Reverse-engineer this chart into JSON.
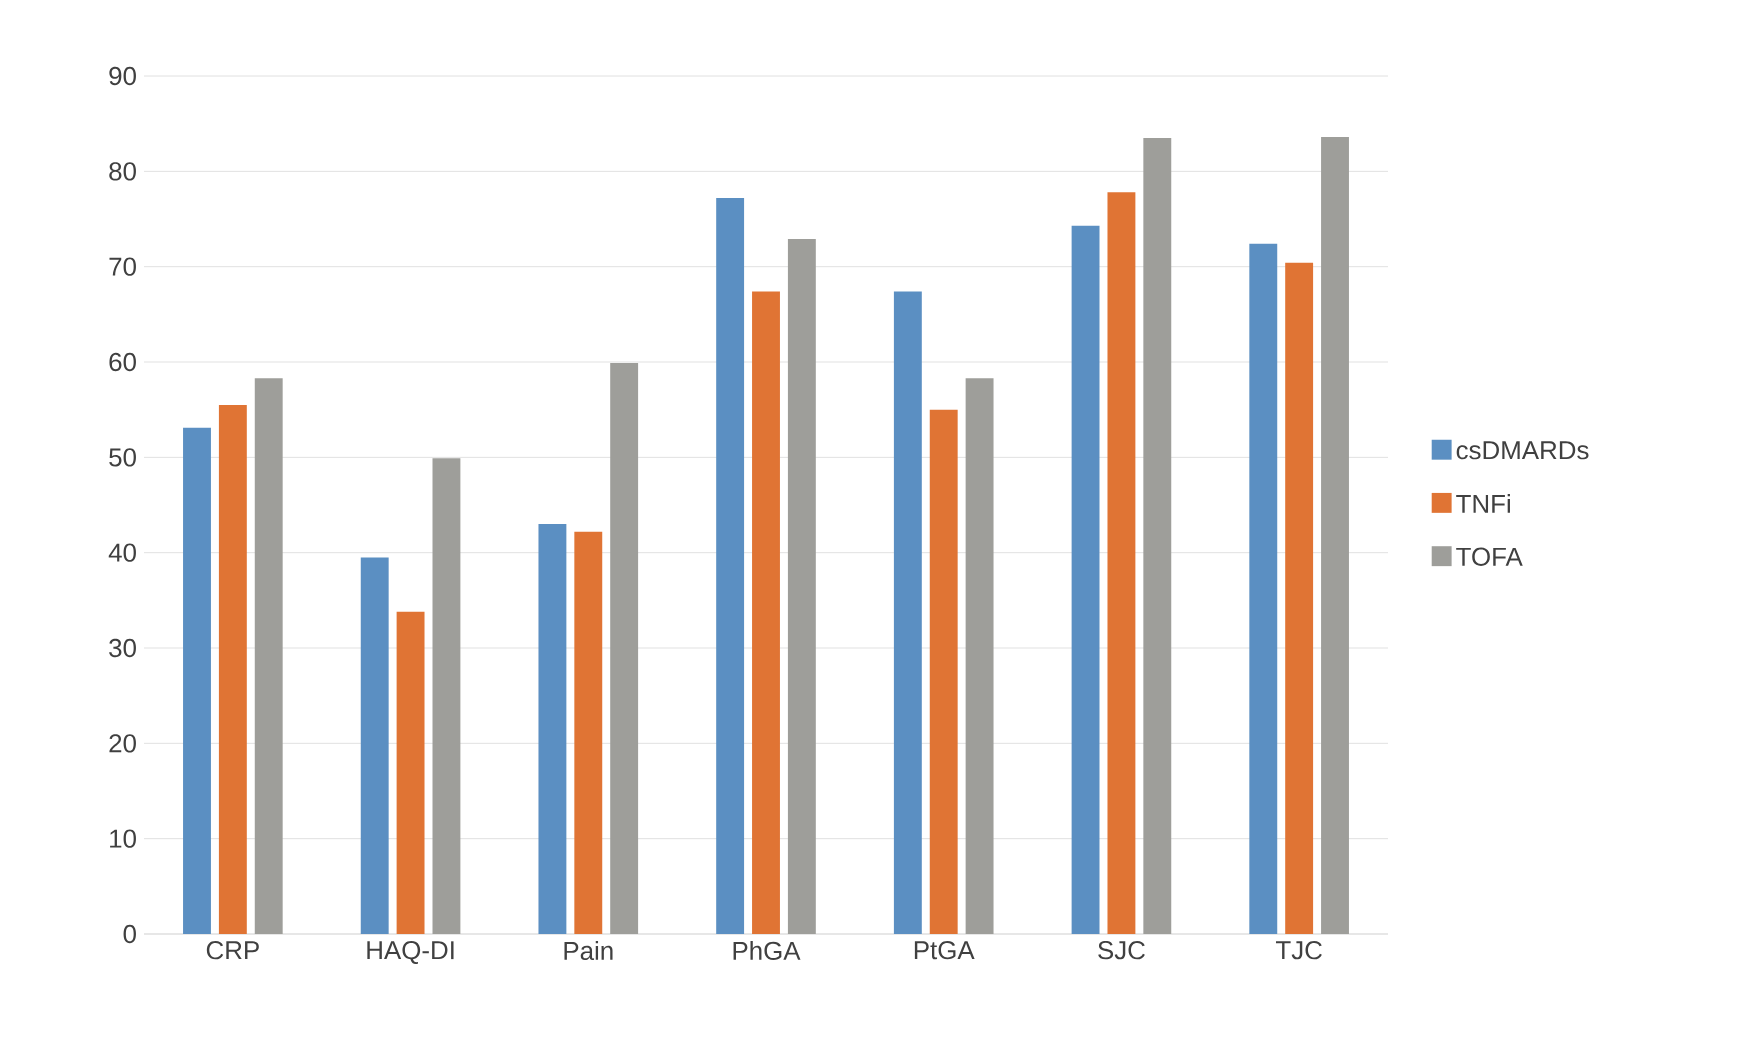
{
  "chart_data": {
    "type": "bar",
    "categories": [
      "CRP",
      "HAQ-DI",
      "Pain",
      "PhGA",
      "PtGA",
      "SJC",
      "TJC"
    ],
    "series": [
      {
        "name": "csDMARDs",
        "color": "#5b8fc2",
        "values": [
          53.1,
          39.5,
          43.0,
          77.2,
          67.4,
          74.3,
          72.4
        ]
      },
      {
        "name": "TNFi",
        "color": "#e07434",
        "values": [
          55.5,
          33.8,
          42.2,
          67.4,
          55.0,
          77.8,
          70.4
        ]
      },
      {
        "name": "TOFA",
        "color": "#9e9e9a",
        "values": [
          58.3,
          49.9,
          59.9,
          72.9,
          58.3,
          83.5,
          83.6
        ]
      }
    ],
    "ylim": [
      0,
      90
    ],
    "yticks": [
      0,
      10,
      20,
      30,
      40,
      50,
      60,
      70,
      80,
      90
    ],
    "grid": "y",
    "legend": "right"
  }
}
